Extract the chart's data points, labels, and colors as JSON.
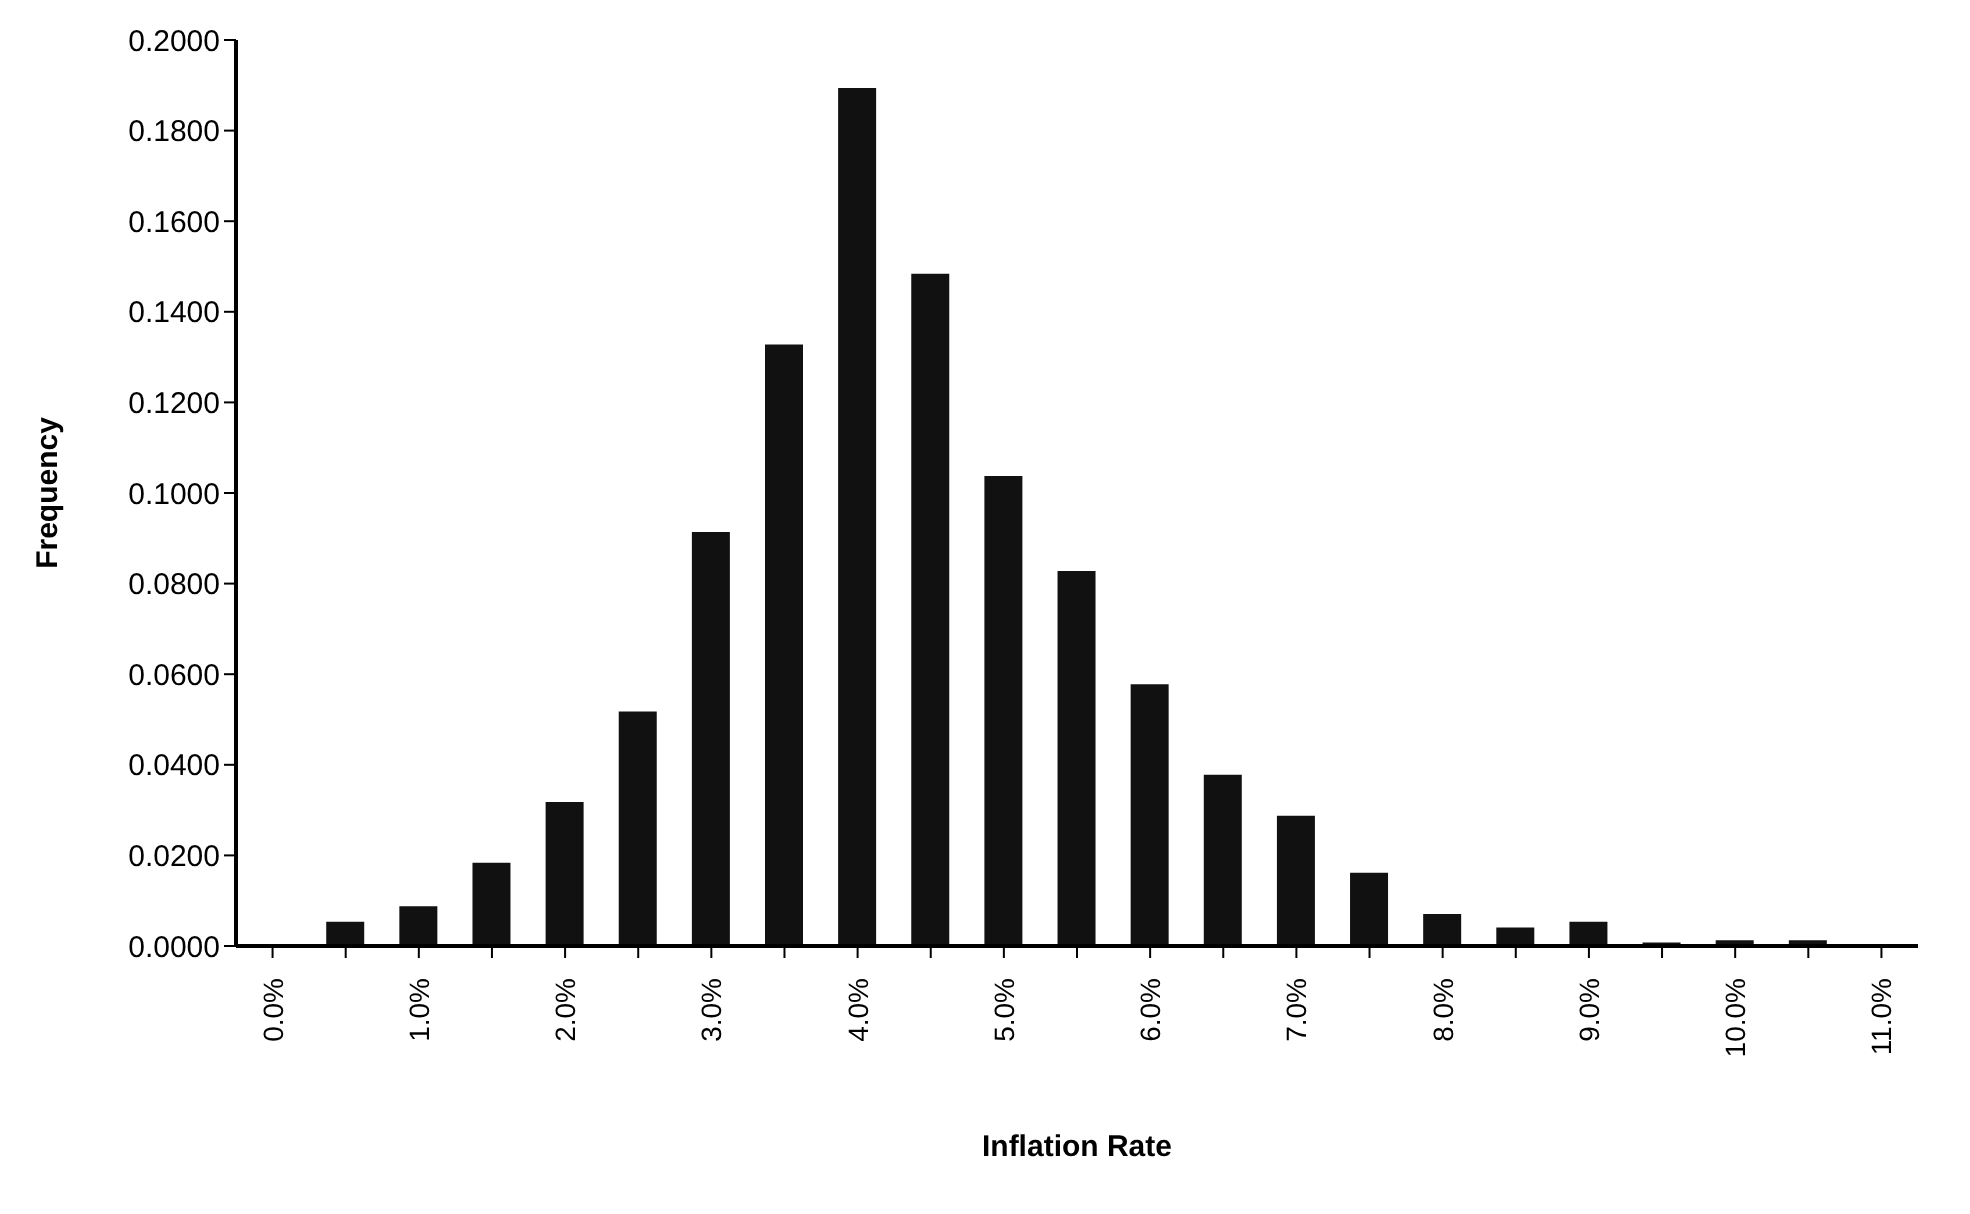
{
  "chart_data": {
    "type": "bar",
    "xlabel": "Inflation Rate",
    "ylabel": "Frequency",
    "categories": [
      "0.0%",
      null,
      "1.0%",
      null,
      "2.0%",
      null,
      "3.0%",
      null,
      "4.0%",
      null,
      "5.0%",
      null,
      "6.0%",
      null,
      "7.0%",
      null,
      "8.0%",
      null,
      "9.0%",
      null,
      "10.0%",
      null,
      "11.0%"
    ],
    "values": [
      0,
      0.0056,
      0.009,
      0.0186,
      0.032,
      0.052,
      0.0916,
      0.133,
      0.1896,
      0.1486,
      0.104,
      0.083,
      0.058,
      0.038,
      0.029,
      0.0164,
      0.0073,
      0.0043,
      0.0056,
      0.001,
      0.0015,
      0.0015,
      0
    ],
    "color": "#111111",
    "ylim": [
      0,
      0.2
    ],
    "yticks": [
      {
        "value": 0,
        "label": "0.0000"
      },
      {
        "value": 0.02,
        "label": "0.0200"
      },
      {
        "value": 0.04,
        "label": "0.0400"
      },
      {
        "value": 0.06,
        "label": "0.0600"
      },
      {
        "value": 0.08,
        "label": "0.0800"
      },
      {
        "value": 0.1,
        "label": "0.1000"
      },
      {
        "value": 0.12,
        "label": "0.1200"
      },
      {
        "value": 0.14,
        "label": "0.1400"
      },
      {
        "value": 0.16,
        "label": "0.1600"
      },
      {
        "value": 0.18,
        "label": "0.1800"
      },
      {
        "value": 0.2,
        "label": "0.2000"
      }
    ],
    "grid": false
  }
}
